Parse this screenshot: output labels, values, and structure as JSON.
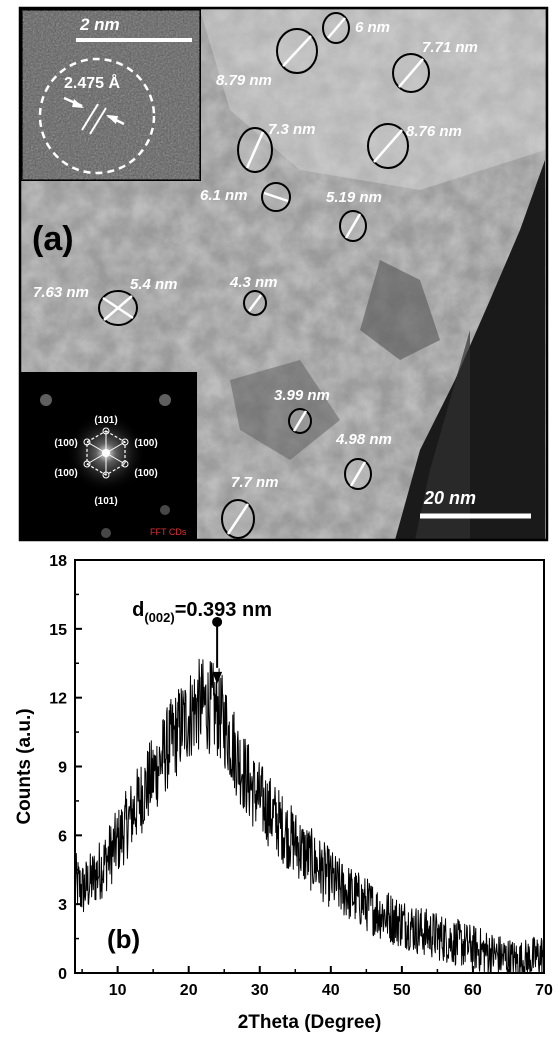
{
  "panel_a": {
    "label": "(a)",
    "inset_hrtem": {
      "scale_bar_label": "2 nm",
      "lattice_spacing_label": "2.475 Å"
    },
    "scale_bar_label": "20 nm",
    "fft_inset": {
      "caption": "FFT CDs",
      "spot_labels": [
        "(101)",
        "(100)",
        "(100)",
        "(100)",
        "(100)",
        "(101)"
      ]
    },
    "particle_labels": [
      "6 nm",
      "7.71 nm",
      "8.79 nm",
      "7.3 nm",
      "8.76 nm",
      "6.1 nm",
      "5.19 nm",
      "7.63 nm",
      "5.4 nm",
      "4.3 nm",
      "3.99 nm",
      "4.98 nm",
      "7.7 nm"
    ]
  },
  "chart_data": {
    "type": "line",
    "panel_label": "(b)",
    "xlabel": "2Theta (Degree)",
    "ylabel": "Counts (a.u.)",
    "xlim": [
      4,
      70
    ],
    "ylim": [
      0,
      18
    ],
    "x_ticks": [
      10,
      20,
      30,
      40,
      50,
      60,
      70
    ],
    "y_ticks": [
      0,
      3,
      6,
      9,
      12,
      15,
      18
    ],
    "annotation": {
      "text_main": "d",
      "text_sub": "(002)",
      "text_rest": "=0.393 nm",
      "x": 24,
      "y": 15.3
    },
    "series": [
      {
        "color": "#000000",
        "x": [
          4,
          5,
          6,
          7,
          8,
          9,
          10,
          11,
          12,
          13,
          14,
          15,
          16,
          17,
          18,
          19,
          20,
          21,
          22,
          23,
          24,
          25,
          26,
          27,
          28,
          29,
          30,
          31,
          32,
          33,
          34,
          35,
          36,
          37,
          38,
          39,
          40,
          41,
          42,
          43,
          44,
          45,
          46,
          47,
          48,
          49,
          50,
          51,
          52,
          53,
          54,
          55,
          56,
          57,
          58,
          59,
          60,
          61,
          62,
          63,
          64,
          65,
          66,
          67,
          68,
          69,
          70
        ],
        "y": [
          4.0,
          3.6,
          3.9,
          4.3,
          4.7,
          5.2,
          5.7,
          6.3,
          6.9,
          7.5,
          8.1,
          8.6,
          9.2,
          9.8,
          10.3,
          10.8,
          11.2,
          11.6,
          11.7,
          11.6,
          11.4,
          10.9,
          10.1,
          9.3,
          8.6,
          8.0,
          7.6,
          7.2,
          6.8,
          6.4,
          6.0,
          5.7,
          5.3,
          5.0,
          4.7,
          4.4,
          4.1,
          3.8,
          3.6,
          3.4,
          3.2,
          3.0,
          2.8,
          2.6,
          2.5,
          2.3,
          2.2,
          2.1,
          1.9,
          1.8,
          1.7,
          1.6,
          1.5,
          1.4,
          1.3,
          1.2,
          1.1,
          1.0,
          0.9,
          0.8,
          0.7,
          0.6,
          0.5,
          0.5,
          0.6,
          0.7,
          0.8
        ]
      }
    ]
  }
}
